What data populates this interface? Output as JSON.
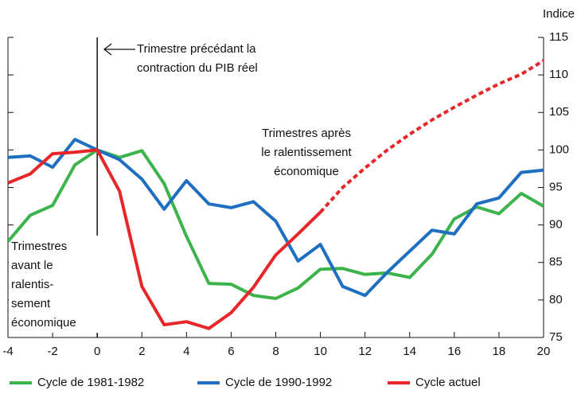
{
  "chart_data": {
    "type": "line",
    "y_axis_label": "Indice",
    "x": [
      -4,
      -3,
      -2,
      -1,
      0,
      1,
      2,
      3,
      4,
      5,
      6,
      7,
      8,
      9,
      10,
      11,
      12,
      13,
      14,
      15,
      16,
      17,
      18,
      19,
      20
    ],
    "xlim": [
      -4,
      20
    ],
    "xticks": [
      -4,
      -2,
      0,
      2,
      4,
      6,
      8,
      10,
      12,
      14,
      16,
      18,
      20
    ],
    "ylim": [
      75,
      115
    ],
    "yticks": [
      75,
      80,
      85,
      90,
      95,
      100,
      105,
      110,
      115
    ],
    "series": [
      {
        "name": "Cycle de 1981-1982",
        "color": "#3cb44b",
        "values": [
          87.8,
          91.3,
          92.6,
          98,
          100,
          99,
          99.9,
          95.5,
          88.5,
          82.2,
          82.1,
          80.6,
          80.2,
          81.6,
          84.1,
          84.2,
          83.4,
          83.6,
          83,
          86.1,
          90.8,
          92.4,
          91.5,
          94.2,
          92.5
        ]
      },
      {
        "name": "Cycle de 1990-1992",
        "color": "#1f6fc0",
        "values": [
          99,
          99.2,
          97.7,
          101.4,
          100,
          98.7,
          96.1,
          92.1,
          95.9,
          92.8,
          92.3,
          93.1,
          90.5,
          85.2,
          87.4,
          81.8,
          80.6,
          83.7,
          86.5,
          89.3,
          88.8,
          92.8,
          93.6,
          97,
          97.3
        ]
      },
      {
        "name": "Cycle actuel",
        "color": "#e8262a",
        "dashed_from": 10,
        "values": [
          95.6,
          96.8,
          99.5,
          99.7,
          100,
          94.5,
          81.8,
          76.7,
          77.1,
          76.2,
          78.3,
          81.7,
          86,
          88.8,
          91.7,
          95,
          97.6,
          100,
          102.1,
          104,
          105.7,
          107.3,
          108.8,
          110.1,
          111.9
        ]
      }
    ],
    "reference_line_x": 0,
    "annotations": [
      {
        "lines": [
          "Trimestre précédant la",
          "contraction du PIB réel"
        ]
      },
      {
        "lines": [
          "Trimestres après",
          "le ralentissement",
          "économique"
        ]
      },
      {
        "lines": [
          "Trimestres",
          "avant le",
          "ralentis-",
          "sement",
          "économique"
        ]
      }
    ]
  }
}
